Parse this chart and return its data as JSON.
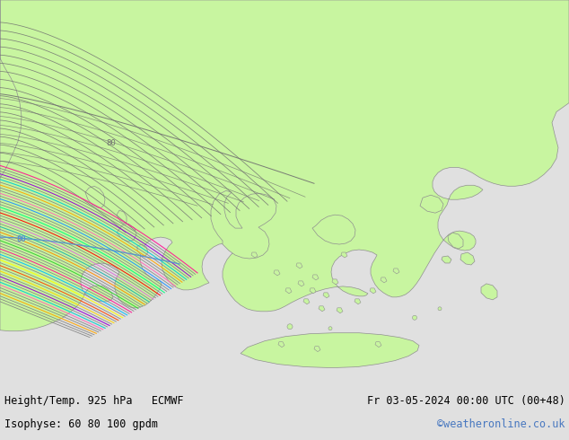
{
  "title_left": "Height/Temp. 925 hPa   ECMWF",
  "title_right": "Fr 03-05-2024 00:00 UTC (00+48)",
  "subtitle_left": "Isophyse: 60 80 100 gpdm",
  "subtitle_right": "©weatheronline.co.uk",
  "bg_color": "#e0e0e0",
  "land_color": "#c8f5a0",
  "sea_color": "#e8e8e8",
  "border_color": "#909090",
  "contour_color": "#707070",
  "label_color": "#5090d0",
  "bottom_bar_color": "#d4d4d4",
  "bottom_text_color": "#000000",
  "watermark_color": "#4878c0",
  "ensemble_colors": [
    "#808080",
    "#808080",
    "#808080",
    "#ffa500",
    "#808080",
    "#808080",
    "#ff69b4",
    "#00ced1",
    "#808080",
    "#9400d3",
    "#808080",
    "#ffd700",
    "#808080",
    "#ff4500",
    "#808080",
    "#ffff00",
    "#808080",
    "#00bfff",
    "#808080",
    "#ff1493",
    "#808080",
    "#808080",
    "#32cd32",
    "#808080",
    "#808080",
    "#ff8c00",
    "#808080",
    "#20b2aa",
    "#808080",
    "#da70d6",
    "#808080",
    "#808080",
    "#ff0000",
    "#808080",
    "#00ff7f",
    "#808080",
    "#808080",
    "#1e90ff",
    "#808080",
    "#ff69b4",
    "#808080",
    "#808080",
    "#ffa500",
    "#808080",
    "#00ced1",
    "#808080",
    "#9400d3",
    "#808080",
    "#808080",
    "#ff1493"
  ]
}
